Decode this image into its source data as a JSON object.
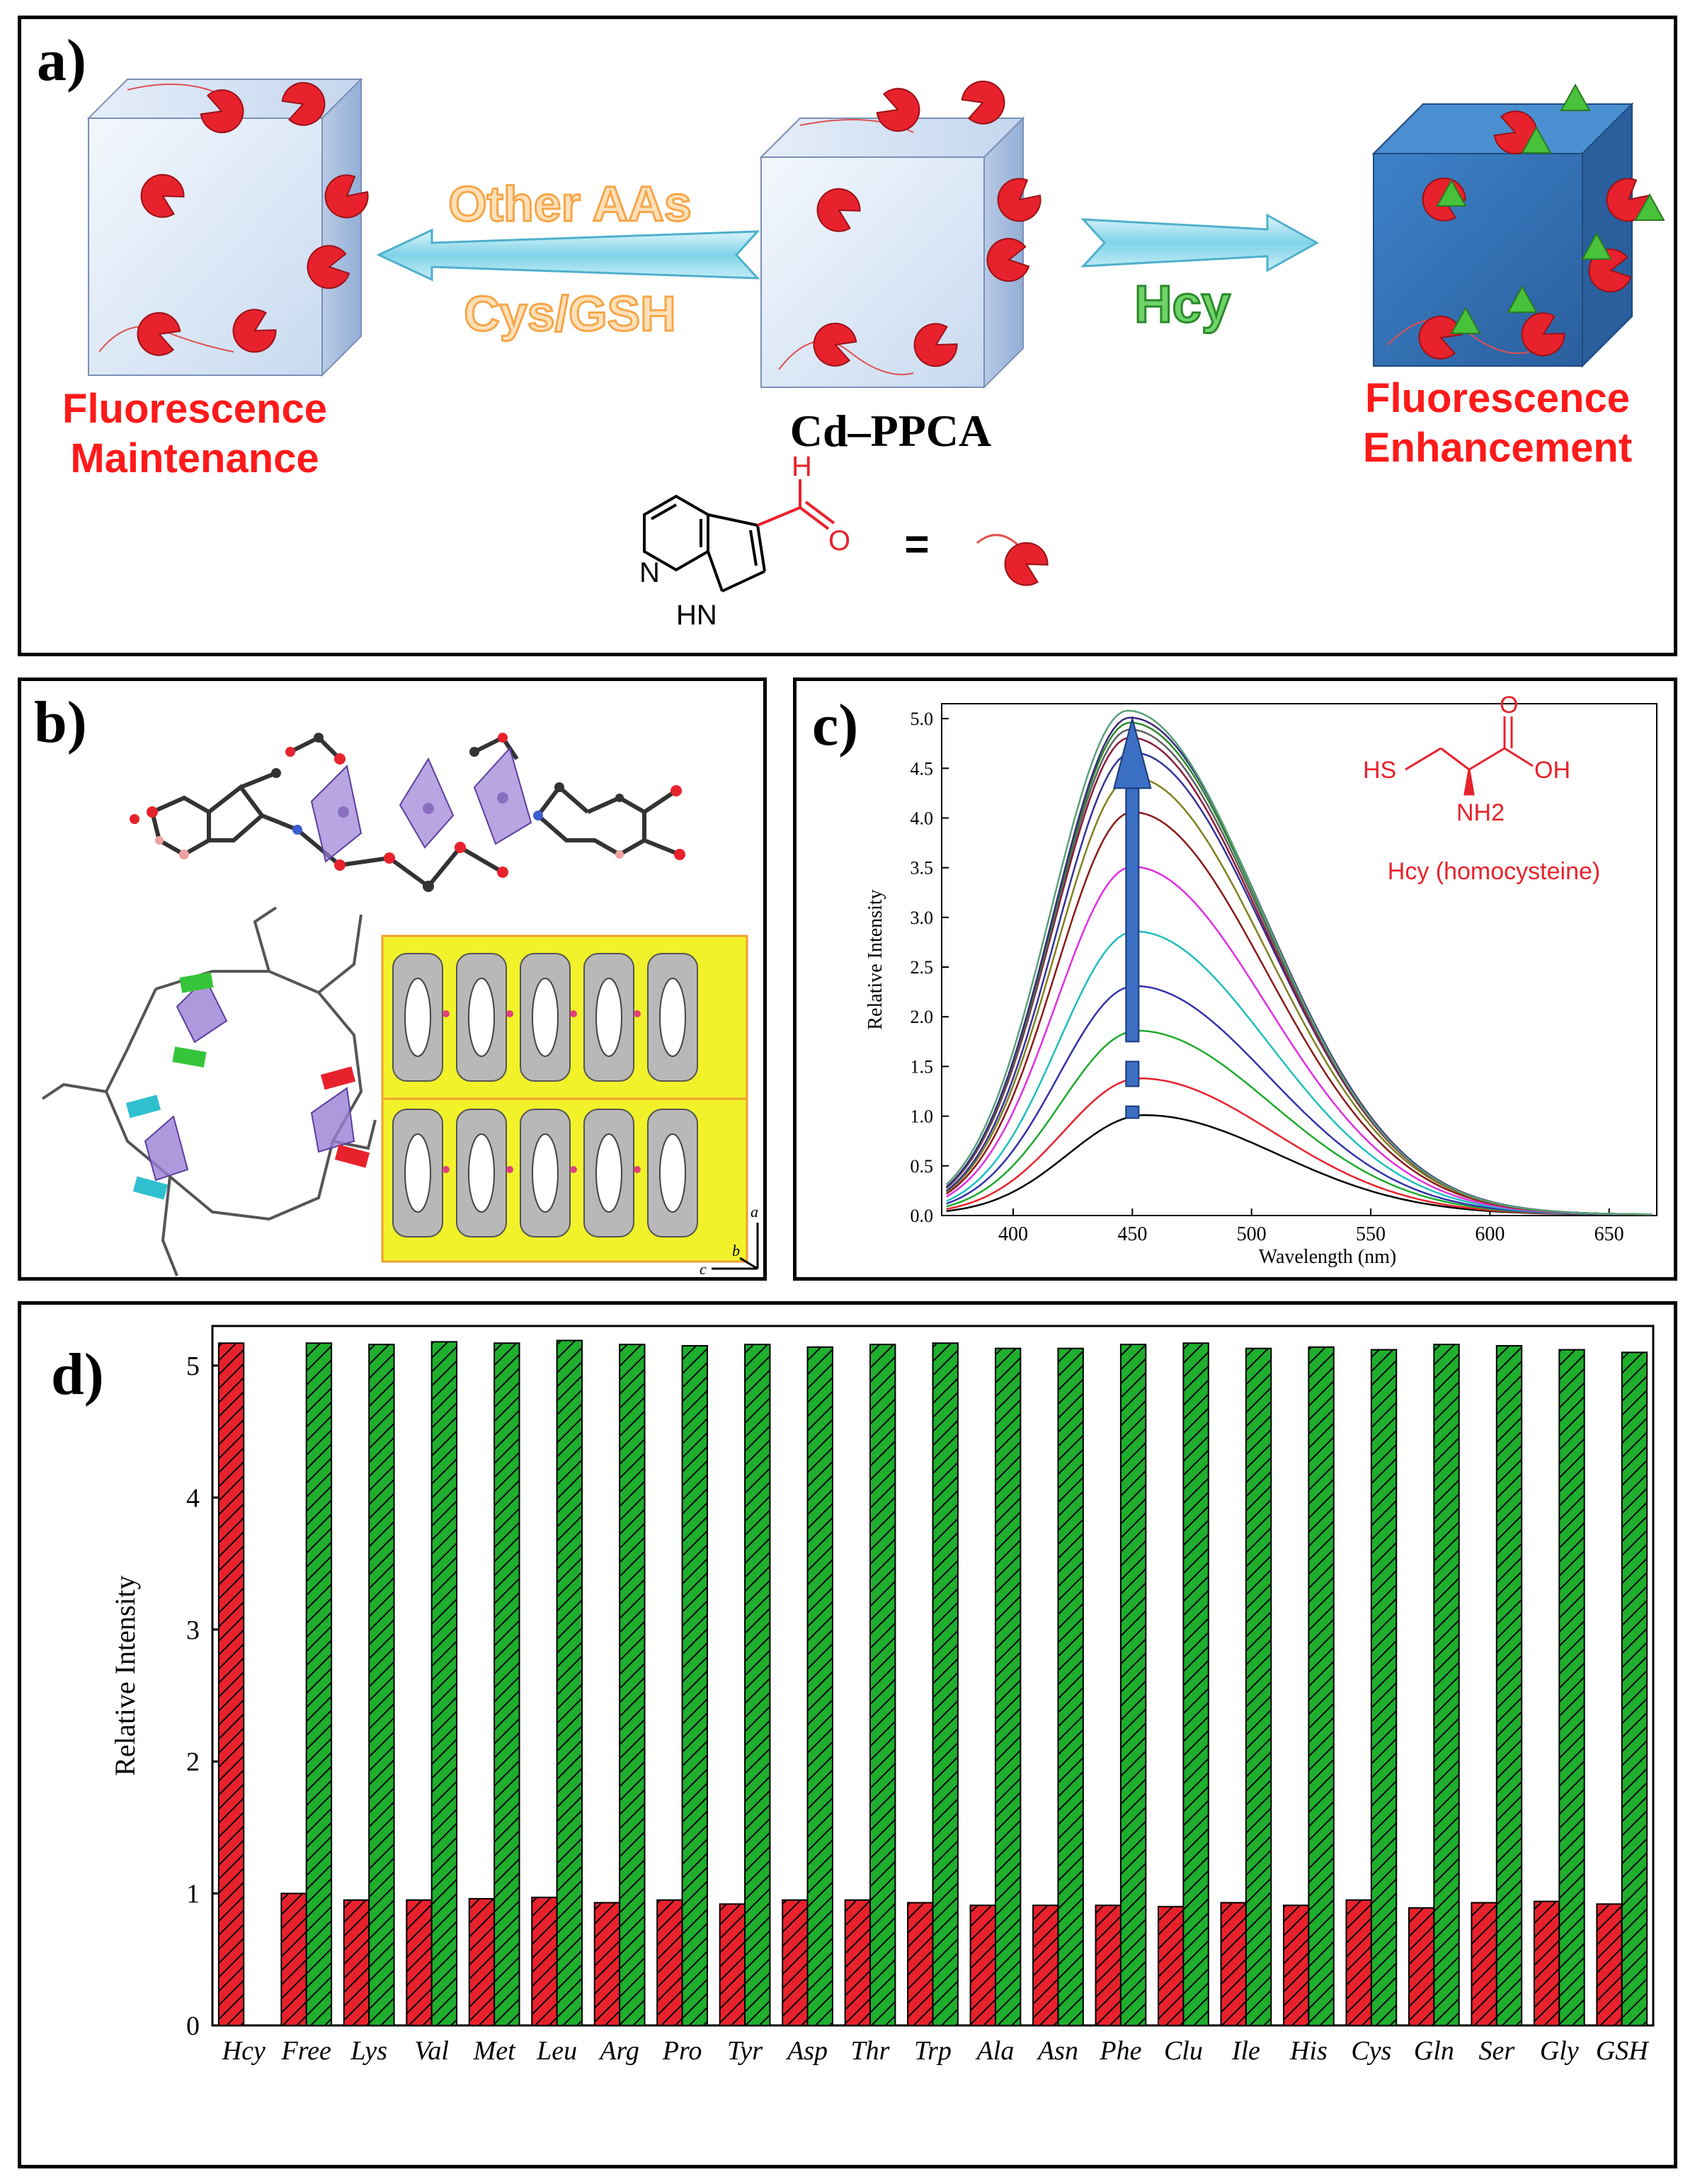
{
  "panel_a": {
    "label": "a)",
    "left_caption": [
      "Fluorescence",
      "Maintenance"
    ],
    "right_caption": [
      "Fluorescence",
      "Enhancement"
    ],
    "center_caption": "Cd–PPCA",
    "arrow_left_top": "Other AAs",
    "arrow_left_bottom": "Cys/GSH",
    "arrow_right": "Hcy",
    "struct_atom_n": "N",
    "struct_atom_hn": "HN",
    "struct_atom_h": "H",
    "struct_atom_o": "O",
    "equals": "="
  },
  "panel_b": {
    "label": "b)",
    "axis_a": "a",
    "axis_b": "b",
    "axis_c": "c"
  },
  "panel_c": {
    "label": "c)",
    "molecule_hs": "HS",
    "molecule_oh": "OH",
    "molecule_o": "O",
    "molecule_nh2": "NH2",
    "molecule_caption": "Hcy (homocysteine)"
  },
  "panel_d": {
    "label": "d)"
  },
  "colors": {
    "red_bar": "#e8222c",
    "green_bar": "#1fae2e",
    "caption_red": "#ff1a1a",
    "arrow_orange": "#f5a64a",
    "hcy_green": "#3bb34a",
    "mol_red": "#e8222c"
  },
  "chart_data": [
    {
      "type": "line",
      "xlabel": "Wavelength (nm)",
      "ylabel": "Relative Intensity",
      "xlim": [
        370,
        670
      ],
      "ylim": [
        0,
        5.15
      ],
      "xticks": [
        400,
        450,
        500,
        550,
        600,
        650
      ],
      "yticks": [
        0.0,
        0.5,
        1.0,
        1.5,
        2.0,
        2.5,
        3.0,
        3.5,
        4.0,
        4.5,
        5.0
      ],
      "peak_wavelengths": [
        455,
        453,
        452,
        451,
        451,
        450,
        450,
        450,
        450,
        449,
        449,
        449,
        449,
        448
      ],
      "peak_intensities": [
        1.0,
        1.37,
        1.85,
        2.3,
        2.85,
        3.5,
        4.05,
        4.4,
        4.65,
        4.8,
        4.88,
        4.95,
        5.0,
        5.07
      ],
      "series_colors": [
        "#000000",
        "#e8222c",
        "#1faa2e",
        "#3333aa",
        "#1fbfbf",
        "#e030e0",
        "#8a1a1a",
        "#808020",
        "#333399",
        "#8a1a3a",
        "#606060",
        "#2a8a2a",
        "#3a2a7a",
        "#5aa07a"
      ],
      "grid": false
    },
    {
      "type": "bar",
      "ylabel": "Relative Intensity",
      "ylim": [
        0,
        5.3
      ],
      "yticks": [
        0,
        1,
        2,
        3,
        4,
        5
      ],
      "categories": [
        "Hcy",
        "Free",
        "Lys",
        "Val",
        "Met",
        "Leu",
        "Arg",
        "Pro",
        "Tyr",
        "Asp",
        "Thr",
        "Trp",
        "Ala",
        "Asn",
        "Phe",
        "Clu",
        "Ile",
        "His",
        "Cys",
        "Gln",
        "Ser",
        "Gly",
        "GSH"
      ],
      "series": [
        {
          "values": [
            5.17,
            1.0,
            0.95,
            0.95,
            0.96,
            0.97,
            0.93,
            0.95,
            0.92,
            0.95,
            0.95,
            0.93,
            0.91,
            0.91,
            0.91,
            0.9,
            0.93,
            0.91,
            0.95,
            0.89,
            0.93,
            0.94,
            0.92
          ]
        },
        {
          "values": [
            null,
            5.17,
            5.16,
            5.18,
            5.17,
            5.19,
            5.16,
            5.15,
            5.16,
            5.14,
            5.16,
            5.17,
            5.13,
            5.13,
            5.16,
            5.17,
            5.13,
            5.14,
            5.12,
            5.16,
            5.15,
            5.12,
            5.1
          ]
        }
      ],
      "grid": false
    }
  ]
}
